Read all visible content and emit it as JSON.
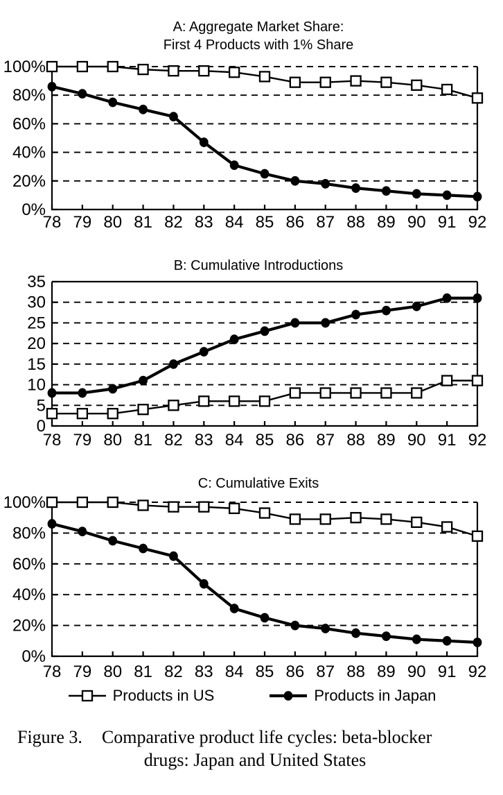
{
  "figure": {
    "legend": [
      {
        "label": "Products in US",
        "marker": "square-open"
      },
      {
        "label": "Products in Japan",
        "marker": "circle-filled"
      }
    ],
    "caption": {
      "label": "Figure 3.",
      "line1": "Comparative product life cycles: beta-blocker",
      "line2": "drugs: Japan and United States"
    }
  },
  "chart_data": [
    {
      "id": "A",
      "type": "line",
      "title_lines": [
        "A: Aggregate Market Share:",
        "First 4 Products with 1% Share"
      ],
      "x": [
        78,
        79,
        80,
        81,
        82,
        83,
        84,
        85,
        86,
        87,
        88,
        89,
        90,
        91,
        92
      ],
      "x_tick_labels": [
        "78",
        "79",
        "80",
        "81",
        "82",
        "83",
        "84",
        "85",
        "86",
        "87",
        "88",
        "89",
        "90",
        "91",
        "92"
      ],
      "ylim": [
        0,
        100
      ],
      "y_tick_values": [
        0,
        20,
        40,
        60,
        80,
        100
      ],
      "y_tick_labels": [
        "0%",
        "20%",
        "40%",
        "60%",
        "80%",
        "100%"
      ],
      "grid": "dashed-horizontal",
      "top_frame_solid": false,
      "series": [
        {
          "name": "Products in US",
          "marker": "square-open",
          "values": [
            100,
            100,
            100,
            98,
            97,
            97,
            96,
            93,
            89,
            89,
            90,
            89,
            87,
            84,
            78
          ]
        },
        {
          "name": "Products in Japan",
          "marker": "circle-filled",
          "values": [
            86,
            81,
            75,
            70,
            65,
            47,
            31,
            25,
            20,
            18,
            15,
            13,
            11,
            10,
            9
          ]
        }
      ]
    },
    {
      "id": "B",
      "type": "line",
      "title_lines": [
        "B: Cumulative Introductions"
      ],
      "x": [
        78,
        79,
        80,
        81,
        82,
        83,
        84,
        85,
        86,
        87,
        88,
        89,
        90,
        91,
        92
      ],
      "x_tick_labels": [
        "78",
        "79",
        "80",
        "81",
        "82",
        "83",
        "84",
        "85",
        "86",
        "87",
        "88",
        "89",
        "90",
        "91",
        "92"
      ],
      "ylim": [
        0,
        35
      ],
      "y_tick_values": [
        0,
        5,
        10,
        15,
        20,
        25,
        30,
        35
      ],
      "y_tick_labels": [
        "0",
        "5",
        "10",
        "15",
        "20",
        "25",
        "30",
        "35"
      ],
      "grid": "dashed-horizontal",
      "top_frame_solid": true,
      "series": [
        {
          "name": "Products in US",
          "marker": "square-open",
          "values": [
            3,
            3,
            3,
            4,
            5,
            6,
            6,
            6,
            8,
            8,
            8,
            8,
            8,
            11,
            11
          ]
        },
        {
          "name": "Products in Japan",
          "marker": "circle-filled",
          "values": [
            8,
            8,
            9,
            11,
            15,
            18,
            21,
            23,
            25,
            25,
            27,
            28,
            29,
            31,
            31
          ]
        }
      ]
    },
    {
      "id": "C",
      "type": "line",
      "title_lines": [
        "C: Cumulative Exits"
      ],
      "x": [
        78,
        79,
        80,
        81,
        82,
        83,
        84,
        85,
        86,
        87,
        88,
        89,
        90,
        91,
        92
      ],
      "x_tick_labels": [
        "78",
        "79",
        "80",
        "81",
        "82",
        "83",
        "84",
        "85",
        "86",
        "87",
        "88",
        "89",
        "90",
        "91",
        "92"
      ],
      "ylim": [
        0,
        100
      ],
      "y_tick_values": [
        0,
        20,
        40,
        60,
        80,
        100
      ],
      "y_tick_labels": [
        "0%",
        "20%",
        "40%",
        "60%",
        "80%",
        "100%"
      ],
      "grid": "dashed-horizontal",
      "top_frame_solid": false,
      "series": [
        {
          "name": "Products in US",
          "marker": "square-open",
          "values": [
            100,
            100,
            100,
            98,
            97,
            97,
            96,
            93,
            89,
            89,
            90,
            89,
            87,
            84,
            78
          ]
        },
        {
          "name": "Products in Japan",
          "marker": "circle-filled",
          "values": [
            86,
            81,
            75,
            70,
            65,
            47,
            31,
            25,
            20,
            18,
            15,
            13,
            11,
            10,
            9
          ]
        }
      ]
    }
  ]
}
